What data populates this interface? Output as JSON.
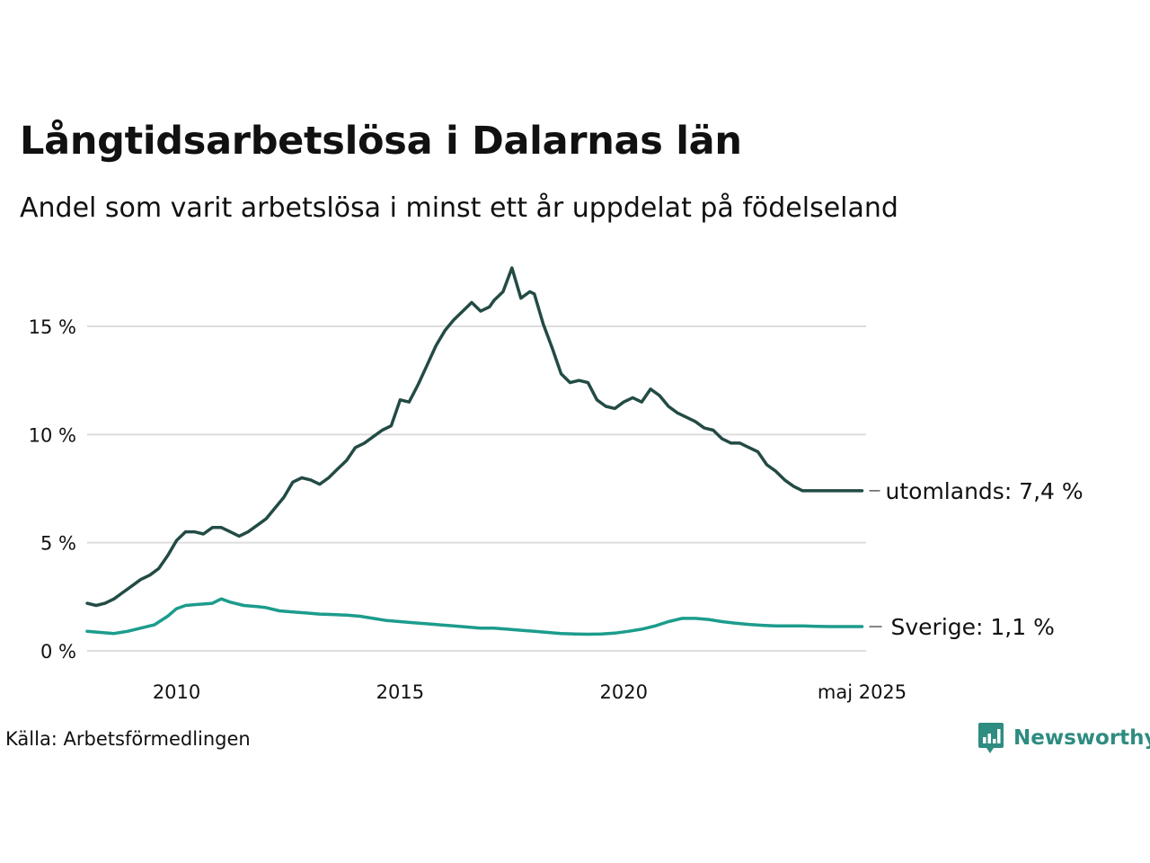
{
  "title": "Långtidsarbetslösa i Dalarnas län",
  "subtitle": "Andel som varit arbetslösa i minst ett år uppdelat på födelseland",
  "source": "Källa: Arbetsförmedlingen",
  "brand": {
    "name": "Newsworthy",
    "icon": "bar-chart-speech-bubble-icon",
    "color": "#2e8c80"
  },
  "chart_data": {
    "type": "line",
    "x_unit": "year",
    "ylim": [
      0,
      17.7
    ],
    "xlim": [
      2008.0,
      2025.42
    ],
    "y_ticks": [
      0,
      5,
      10,
      15
    ],
    "y_tick_labels": [
      "0 %",
      "5 %",
      "10 %",
      "15 %"
    ],
    "x_ticks": [
      2010,
      2015,
      2020,
      2025.33
    ],
    "x_tick_labels": [
      "2010",
      "2015",
      "2020",
      "maj 2025"
    ],
    "grid": true,
    "series": [
      {
        "name": "utomlands",
        "end_label": "utomlands: 7,4 %",
        "color": "#234b45",
        "x": [
          2008.0,
          2008.2,
          2008.4,
          2008.6,
          2008.8,
          2009.0,
          2009.2,
          2009.4,
          2009.6,
          2009.8,
          2010.0,
          2010.2,
          2010.4,
          2010.6,
          2010.8,
          2011.0,
          2011.2,
          2011.4,
          2011.6,
          2011.8,
          2012.0,
          2012.2,
          2012.4,
          2012.6,
          2012.8,
          2013.0,
          2013.2,
          2013.4,
          2013.6,
          2013.8,
          2014.0,
          2014.2,
          2014.4,
          2014.6,
          2014.8,
          2015.0,
          2015.2,
          2015.4,
          2015.6,
          2015.8,
          2016.0,
          2016.2,
          2016.4,
          2016.6,
          2016.8,
          2017.0,
          2017.1,
          2017.3,
          2017.5,
          2017.7,
          2017.9,
          2018.0,
          2018.2,
          2018.4,
          2018.6,
          2018.8,
          2019.0,
          2019.2,
          2019.4,
          2019.6,
          2019.8,
          2020.0,
          2020.2,
          2020.4,
          2020.6,
          2020.8,
          2021.0,
          2021.2,
          2021.4,
          2021.6,
          2021.8,
          2022.0,
          2022.2,
          2022.4,
          2022.6,
          2022.8,
          2023.0,
          2023.2,
          2023.4,
          2023.6,
          2023.8,
          2024.0,
          2024.2,
          2024.4,
          2024.6,
          2024.8,
          2025.0,
          2025.2,
          2025.33
        ],
        "values": [
          2.2,
          2.1,
          2.2,
          2.4,
          2.7,
          3.0,
          3.3,
          3.5,
          3.8,
          4.4,
          5.1,
          5.5,
          5.5,
          5.4,
          5.7,
          5.7,
          5.5,
          5.3,
          5.5,
          5.8,
          6.1,
          6.6,
          7.1,
          7.8,
          8.0,
          7.9,
          7.7,
          8.0,
          8.4,
          8.8,
          9.4,
          9.6,
          9.9,
          10.2,
          10.4,
          11.6,
          11.5,
          12.3,
          13.2,
          14.1,
          14.8,
          15.3,
          15.7,
          16.1,
          15.7,
          15.9,
          16.2,
          16.6,
          17.7,
          16.3,
          16.6,
          16.5,
          15.1,
          14.0,
          12.8,
          12.4,
          12.5,
          12.4,
          11.6,
          11.3,
          11.2,
          11.5,
          11.7,
          11.5,
          12.1,
          11.8,
          11.3,
          11.0,
          10.8,
          10.6,
          10.3,
          10.2,
          9.8,
          9.6,
          9.6,
          9.4,
          9.2,
          8.6,
          8.3,
          7.9,
          7.6,
          7.4,
          7.4,
          7.4,
          7.4,
          7.4,
          7.4,
          7.4,
          7.4
        ]
      },
      {
        "name": "Sverige",
        "end_label": "Sverige: 1,1 %",
        "color": "#1c9c8c",
        "x": [
          2008.0,
          2008.3,
          2008.6,
          2008.9,
          2009.2,
          2009.5,
          2009.8,
          2010.0,
          2010.2,
          2010.5,
          2010.8,
          2011.0,
          2011.2,
          2011.5,
          2011.8,
          2012.0,
          2012.3,
          2012.6,
          2012.9,
          2013.2,
          2013.5,
          2013.8,
          2014.1,
          2014.4,
          2014.7,
          2015.0,
          2015.3,
          2015.6,
          2015.9,
          2016.2,
          2016.5,
          2016.8,
          2017.1,
          2017.4,
          2017.7,
          2018.0,
          2018.3,
          2018.6,
          2018.9,
          2019.2,
          2019.5,
          2019.8,
          2020.1,
          2020.4,
          2020.7,
          2021.0,
          2021.3,
          2021.6,
          2021.9,
          2022.2,
          2022.5,
          2022.8,
          2023.1,
          2023.4,
          2023.7,
          2024.0,
          2024.3,
          2024.6,
          2024.9,
          2025.2,
          2025.33
        ],
        "values": [
          0.9,
          0.85,
          0.8,
          0.9,
          1.05,
          1.2,
          1.6,
          1.95,
          2.1,
          2.15,
          2.2,
          2.4,
          2.25,
          2.1,
          2.05,
          2.0,
          1.85,
          1.8,
          1.75,
          1.7,
          1.68,
          1.65,
          1.6,
          1.5,
          1.4,
          1.35,
          1.3,
          1.25,
          1.2,
          1.15,
          1.1,
          1.05,
          1.05,
          1.0,
          0.95,
          0.9,
          0.85,
          0.8,
          0.78,
          0.77,
          0.78,
          0.82,
          0.9,
          1.0,
          1.15,
          1.35,
          1.5,
          1.5,
          1.45,
          1.35,
          1.28,
          1.22,
          1.18,
          1.15,
          1.15,
          1.15,
          1.13,
          1.12,
          1.12,
          1.12,
          1.12
        ]
      }
    ]
  }
}
